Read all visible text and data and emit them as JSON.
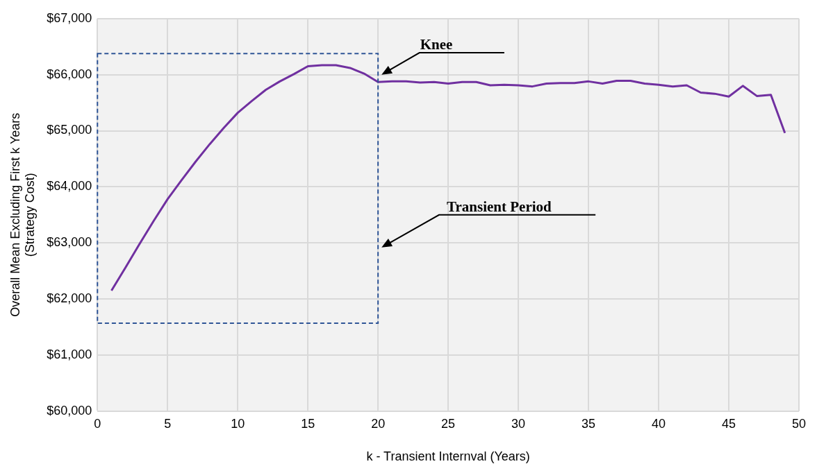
{
  "chart_data": {
    "type": "line",
    "xlabel": "k - Transient Internval (Years)",
    "ylabel": "Overall Mean Excluding First k Years\n(Strategy Cost)",
    "x": [
      1,
      2,
      3,
      4,
      5,
      6,
      7,
      8,
      9,
      10,
      11,
      12,
      13,
      14,
      15,
      16,
      17,
      18,
      19,
      20,
      21,
      22,
      23,
      24,
      25,
      26,
      27,
      28,
      29,
      30,
      31,
      32,
      33,
      34,
      35,
      36,
      37,
      38,
      39,
      40,
      41,
      42,
      43,
      44,
      45,
      46,
      47,
      48,
      49
    ],
    "series": [
      {
        "color": "#7030a0",
        "values": [
          62150,
          62560,
          62980,
          63390,
          63780,
          64120,
          64450,
          64760,
          65050,
          65320,
          65530,
          65730,
          65880,
          66010,
          66150,
          66170,
          66170,
          66120,
          66020,
          65870,
          65880,
          65880,
          65860,
          65870,
          65840,
          65870,
          65870,
          65810,
          65820,
          65810,
          65790,
          65840,
          65850,
          65850,
          65880,
          65840,
          65890,
          65890,
          65840,
          65820,
          65790,
          65810,
          65680,
          65660,
          65610,
          65800,
          65620,
          65640,
          64960
        ]
      }
    ],
    "xlim": [
      0,
      50
    ],
    "xticks": [
      0,
      5,
      10,
      15,
      20,
      25,
      30,
      35,
      40,
      45,
      50
    ],
    "ylim": [
      60000,
      67000
    ],
    "yticks": [
      {
        "value": 60000,
        "label": "$60,000"
      },
      {
        "value": 61000,
        "label": "$61,000"
      },
      {
        "value": 62000,
        "label": "$62,000"
      },
      {
        "value": 63000,
        "label": "$63,000"
      },
      {
        "value": 64000,
        "label": "$64,000"
      },
      {
        "value": 65000,
        "label": "$65,000"
      },
      {
        "value": 66000,
        "label": "$66,000"
      },
      {
        "value": 67000,
        "label": "$67,000"
      }
    ],
    "annotations": [
      "Knee",
      "Transient Period"
    ],
    "grid": true,
    "legend": false,
    "marker": "none",
    "line_style": "solid"
  }
}
